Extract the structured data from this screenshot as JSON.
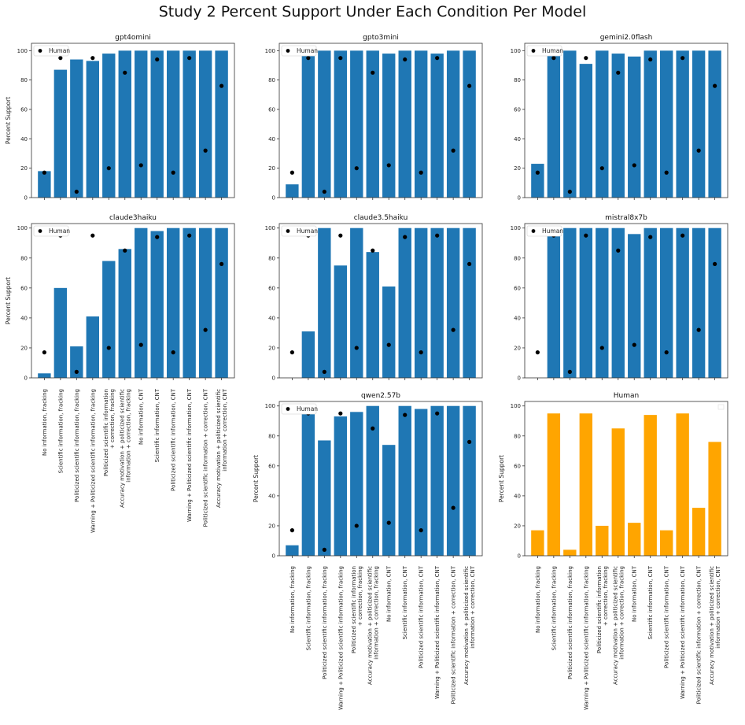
{
  "title": "Study 2 Percent Support Under Each Condition Per Model",
  "colors": {
    "model_bar": "#1f77b4",
    "human_bar": "#ffa500",
    "human_point": "#000000"
  },
  "chart_data": [
    {
      "type": "bar",
      "title": "gpt4omini",
      "ylabel": "Percent Support",
      "legend": "Human",
      "ylim": [
        0,
        105
      ],
      "yticks": [
        0,
        20,
        40,
        60,
        80,
        100
      ],
      "categories": [
        "No information, fracking",
        "Scientific information, fracking",
        "Politicized scientific information, fracking",
        "Warning + Politicized scientific information, fracking",
        "Politicized scientific information\n+ correction, fracking",
        "Accuracy motivation + politicized scientific\ninformation + correction, fracking",
        "No information, CNT",
        "Scientific information, CNT",
        "Politicized scientific information, CNT",
        "Warning + Politicized scientific information, CNT",
        "Politicized scientific information + correction, CNT",
        "Accuracy motivation + politicized scientific\ninformation + correction, CNT"
      ],
      "values": [
        18,
        87,
        94,
        93,
        98,
        100,
        100,
        100,
        100,
        100,
        100,
        100
      ],
      "human": [
        17,
        95,
        4,
        95,
        20,
        85,
        22,
        94,
        17,
        95,
        32,
        76
      ]
    },
    {
      "type": "bar",
      "title": "gpto3mini",
      "ylabel": "",
      "legend": "Human",
      "ylim": [
        0,
        105
      ],
      "yticks": [
        0,
        20,
        40,
        60,
        80,
        100
      ],
      "values": [
        9,
        100,
        100,
        100,
        100,
        100,
        98,
        100,
        100,
        98,
        100,
        100
      ],
      "human": [
        17,
        95,
        4,
        95,
        20,
        85,
        22,
        94,
        17,
        95,
        32,
        76
      ]
    },
    {
      "type": "bar",
      "title": "gemini2.0flash",
      "ylabel": "",
      "legend": "Human",
      "ylim": [
        0,
        105
      ],
      "yticks": [
        0,
        20,
        40,
        60,
        80,
        100
      ],
      "values": [
        23,
        100,
        100,
        91,
        100,
        98,
        96,
        100,
        100,
        100,
        100,
        100
      ],
      "human": [
        17,
        95,
        4,
        95,
        20,
        85,
        22,
        94,
        17,
        95,
        32,
        76
      ]
    },
    {
      "type": "bar",
      "title": "claude3haiku",
      "ylabel": "Percent Support",
      "legend": "Human",
      "ylim": [
        0,
        103
      ],
      "yticks": [
        0,
        20,
        40,
        60,
        80,
        100
      ],
      "values": [
        3,
        60,
        21,
        41,
        78,
        86,
        100,
        98,
        100,
        100,
        100,
        100
      ],
      "human": [
        17,
        95,
        4,
        95,
        20,
        85,
        22,
        94,
        17,
        95,
        32,
        76
      ]
    },
    {
      "type": "bar",
      "title": "claude3.5haiku",
      "ylabel": "",
      "legend": "Human",
      "ylim": [
        0,
        103
      ],
      "yticks": [
        0,
        20,
        40,
        60,
        80,
        100
      ],
      "values": [
        0,
        31,
        100,
        75,
        100,
        84,
        61,
        100,
        100,
        100,
        100,
        100
      ],
      "human": [
        17,
        95,
        4,
        95,
        20,
        85,
        22,
        94,
        17,
        95,
        32,
        76
      ]
    },
    {
      "type": "bar",
      "title": "mistral8x7b",
      "ylabel": "",
      "legend": "Human",
      "ylim": [
        0,
        103
      ],
      "yticks": [
        0,
        20,
        40,
        60,
        80,
        100
      ],
      "values": [
        0,
        100,
        100,
        100,
        100,
        100,
        96,
        100,
        100,
        100,
        100,
        100
      ],
      "human": [
        17,
        95,
        4,
        95,
        20,
        85,
        22,
        94,
        17,
        95,
        32,
        76
      ]
    },
    {
      "type": "bar",
      "title": "qwen2.57b",
      "ylabel": "Percent Support",
      "legend": "Human",
      "ylim": [
        0,
        103
      ],
      "yticks": [
        0,
        20,
        40,
        60,
        80,
        100
      ],
      "values": [
        7,
        100,
        77,
        93,
        96,
        100,
        74,
        100,
        98,
        100,
        100,
        100
      ],
      "human": [
        17,
        95,
        4,
        95,
        20,
        85,
        22,
        94,
        17,
        95,
        32,
        76
      ]
    },
    {
      "type": "bar",
      "title": "Human",
      "ylabel": "Percent Support",
      "legend": "",
      "ylim": [
        0,
        103
      ],
      "yticks": [
        0,
        20,
        40,
        60,
        80,
        100
      ],
      "values": [
        17,
        95,
        4,
        95,
        20,
        85,
        22,
        94,
        17,
        95,
        32,
        76
      ]
    }
  ]
}
